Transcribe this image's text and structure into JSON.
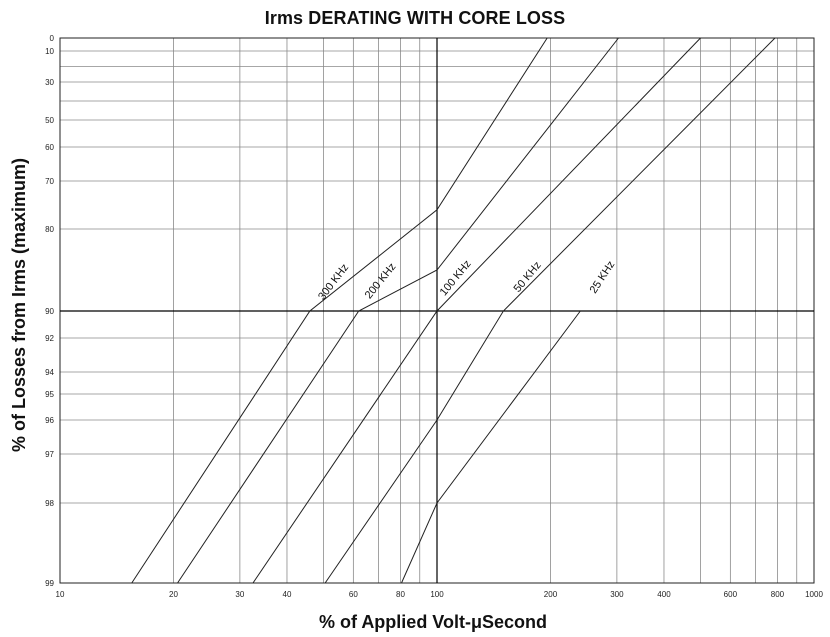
{
  "chart_data": {
    "type": "line",
    "title": "Irms DERATING WITH CORE LOSS",
    "xlabel": "% of Applied Volt-μSecond",
    "ylabel": "% of Losses from Irms (maximum)",
    "x_scale": "log",
    "xlim": [
      10,
      1000
    ],
    "y_scale": "probability",
    "ylim": [
      99,
      0
    ],
    "x_ticks": [
      "10",
      "20",
      "30",
      "40",
      "60",
      "80",
      "100",
      "200",
      "300",
      "400",
      "600",
      "800",
      "1000"
    ],
    "y_ticks": [
      "0",
      "10",
      "30",
      "50",
      "60",
      "70",
      "80",
      "90",
      "92",
      "94",
      "95",
      "96",
      "97",
      "98",
      "99"
    ],
    "grid": true,
    "series": [
      {
        "name": "300 KHz",
        "points": [
          {
            "x": 15.5,
            "y": 99
          },
          {
            "x": 46,
            "y": 90
          },
          {
            "x": 100,
            "y": 76
          },
          {
            "x": 196,
            "y": 0
          }
        ]
      },
      {
        "name": "200 KHz",
        "points": [
          {
            "x": 20.5,
            "y": 99
          },
          {
            "x": 62,
            "y": 90
          },
          {
            "x": 100,
            "y": 85
          },
          {
            "x": 303,
            "y": 0
          }
        ]
      },
      {
        "name": "100 KHz",
        "points": [
          {
            "x": 32.5,
            "y": 99
          },
          {
            "x": 100,
            "y": 90
          },
          {
            "x": 500,
            "y": 0
          }
        ]
      },
      {
        "name": "50 KHz",
        "points": [
          {
            "x": 50.5,
            "y": 99
          },
          {
            "x": 100,
            "y": 96
          },
          {
            "x": 150,
            "y": 90
          },
          {
            "x": 788,
            "y": 0
          }
        ]
      },
      {
        "name": "25 KHz",
        "points": [
          {
            "x": 80.5,
            "y": 99
          },
          {
            "x": 100,
            "y": 98
          },
          {
            "x": 240,
            "y": 90
          }
        ]
      }
    ]
  }
}
